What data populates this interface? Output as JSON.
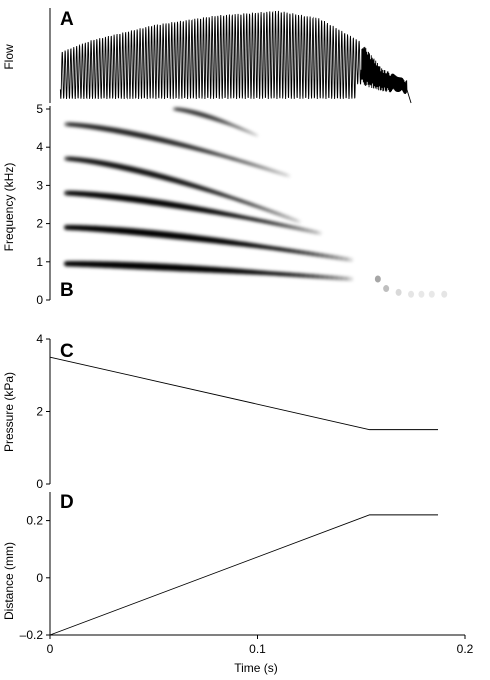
{
  "chart_data": [
    {
      "panel": "A",
      "type": "line",
      "ylabel": "Flow",
      "description_values": {
        "oscillation_start_time": 0.0,
        "oscillation_end_time": 0.172,
        "envelope": [
          {
            "t": 0.0,
            "amp": 0.45
          },
          {
            "t": 0.02,
            "amp": 0.62
          },
          {
            "t": 0.05,
            "amp": 0.78
          },
          {
            "t": 0.08,
            "amp": 0.88
          },
          {
            "t": 0.11,
            "amp": 0.93
          },
          {
            "t": 0.13,
            "amp": 0.85
          },
          {
            "t": 0.15,
            "amp": 0.6
          },
          {
            "t": 0.16,
            "amp": 0.32
          },
          {
            "t": 0.172,
            "amp": 0.2
          }
        ]
      }
    },
    {
      "panel": "B",
      "type": "heatmap",
      "ylabel": "Frequency (kHz)",
      "ylim": [
        0,
        5
      ],
      "yticks": [
        "0",
        "1",
        "2",
        "3",
        "4",
        "5"
      ],
      "harmonics": [
        {
          "f_start": 0.95,
          "f_end": 0.55,
          "t_end": 0.145,
          "intensity": 1.0
        },
        {
          "f_start": 1.9,
          "f_end": 1.05,
          "t_end": 0.145,
          "intensity": 0.95
        },
        {
          "f_start": 2.8,
          "f_end": 1.75,
          "t_end": 0.13,
          "intensity": 0.85
        },
        {
          "f_start": 3.7,
          "f_end": 2.05,
          "t_end": 0.12,
          "intensity": 0.7
        },
        {
          "f_start": 4.6,
          "f_end": 3.25,
          "t_end": 0.115,
          "intensity": 0.6
        },
        {
          "f_start": 5.0,
          "f_end": 4.3,
          "t_end": 0.1,
          "t_start": 0.06,
          "intensity": 0.35
        }
      ]
    },
    {
      "panel": "C",
      "type": "line",
      "ylabel": "Pressure (kPa)",
      "ylim": [
        0,
        4
      ],
      "yticks": [
        "0",
        "2",
        "4"
      ],
      "x": [
        0.0,
        0.154,
        0.187
      ],
      "y": [
        3.5,
        1.5,
        1.5
      ]
    },
    {
      "panel": "D",
      "type": "line",
      "ylabel": "Distance (mm)",
      "xlabel": "Time (s)",
      "ylim": [
        -0.2,
        0.3
      ],
      "yticks": [
        "–0.2",
        "0",
        "0.2"
      ],
      "xlim": [
        0,
        0.2
      ],
      "xticks": [
        "0",
        "0.1",
        "0.2"
      ],
      "x": [
        0.0,
        0.154,
        0.187
      ],
      "y": [
        -0.2,
        0.22,
        0.22
      ]
    }
  ]
}
